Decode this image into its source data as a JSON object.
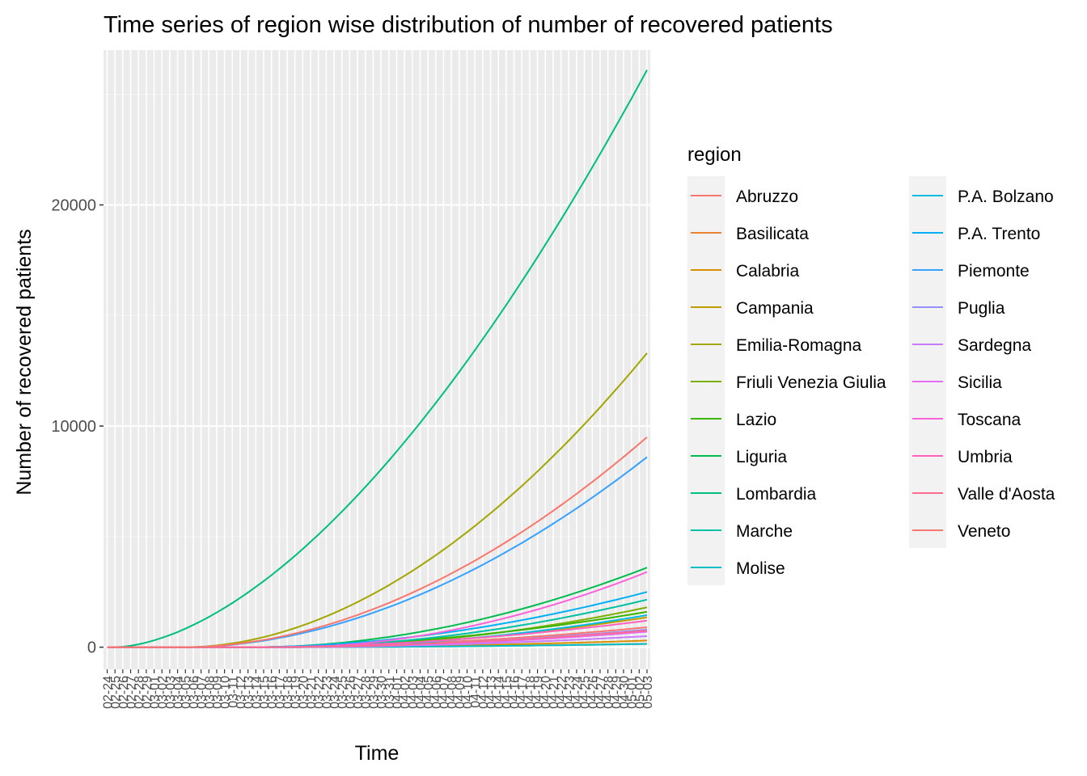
{
  "chart_data": {
    "type": "line",
    "title": "Time series of region wise distribution of number of recovered patients",
    "xlabel": "Time",
    "ylabel": "Number of recovered patients",
    "x": [
      "02-24",
      "02-25",
      "02-26",
      "02-27",
      "02-28",
      "02-29",
      "03-01",
      "03-02",
      "03-03",
      "03-04",
      "03-05",
      "03-06",
      "03-07",
      "03-08",
      "03-09",
      "03-10",
      "03-11",
      "03-12",
      "03-13",
      "03-14",
      "03-15",
      "03-16",
      "03-17",
      "03-18",
      "03-19",
      "03-20",
      "03-21",
      "03-22",
      "03-23",
      "03-24",
      "03-25",
      "03-26",
      "03-27",
      "03-28",
      "03-29",
      "03-30",
      "03-31",
      "04-01",
      "04-02",
      "04-03",
      "04-04",
      "04-05",
      "04-06",
      "04-07",
      "04-08",
      "04-09",
      "04-10",
      "04-11",
      "04-12",
      "04-13",
      "04-14",
      "04-15",
      "04-16",
      "04-17",
      "04-18",
      "04-19",
      "04-20",
      "04-21",
      "04-22",
      "04-23",
      "04-24",
      "04-25",
      "04-26",
      "04-27",
      "04-28",
      "04-29",
      "04-30",
      "05-01",
      "05-02",
      "05-03"
    ],
    "ylim": [
      -1000,
      27000
    ],
    "y_ticks": [
      0,
      10000,
      20000
    ],
    "grid": true,
    "legend": {
      "title": "region",
      "position": "right",
      "columns": 2
    },
    "series": [
      {
        "name": "Abruzzo",
        "color": "#F8766D",
        "final": 900
      },
      {
        "name": "Basilicata",
        "color": "#EA8331",
        "final": 150
      },
      {
        "name": "Calabria",
        "color": "#D89000",
        "final": 300
      },
      {
        "name": "Campania",
        "color": "#C09B00",
        "final": 1350
      },
      {
        "name": "Emilia-Romagna",
        "color": "#A3A500",
        "final": 13300
      },
      {
        "name": "Friuli Venezia Giulia",
        "color": "#7CAE00",
        "final": 1800
      },
      {
        "name": "Lazio",
        "color": "#39B600",
        "final": 1600
      },
      {
        "name": "Liguria",
        "color": "#00BB4E",
        "final": 3600
      },
      {
        "name": "Lombardia",
        "color": "#00BF7D",
        "final": 26100
      },
      {
        "name": "Marche",
        "color": "#00C1A3",
        "final": 2150
      },
      {
        "name": "Molise",
        "color": "#00BFC4",
        "final": 150
      },
      {
        "name": "P.A. Bolzano",
        "color": "#00BAE0",
        "final": 1450
      },
      {
        "name": "P.A. Trento",
        "color": "#00B0F6",
        "final": 2500
      },
      {
        "name": "Piemonte",
        "color": "#35A2FF",
        "final": 8600
      },
      {
        "name": "Puglia",
        "color": "#9590FF",
        "final": 800
      },
      {
        "name": "Sardegna",
        "color": "#C77CFF",
        "final": 500
      },
      {
        "name": "Sicilia",
        "color": "#E76BF3",
        "final": 700
      },
      {
        "name": "Toscana",
        "color": "#FA62DB",
        "final": 3400
      },
      {
        "name": "Umbria",
        "color": "#FF62BC",
        "final": 1200
      },
      {
        "name": "Valle d'Aosta",
        "color": "#FF6C91",
        "final": 750
      },
      {
        "name": "Veneto",
        "color": "#F8766D",
        "final": 9500
      }
    ]
  }
}
